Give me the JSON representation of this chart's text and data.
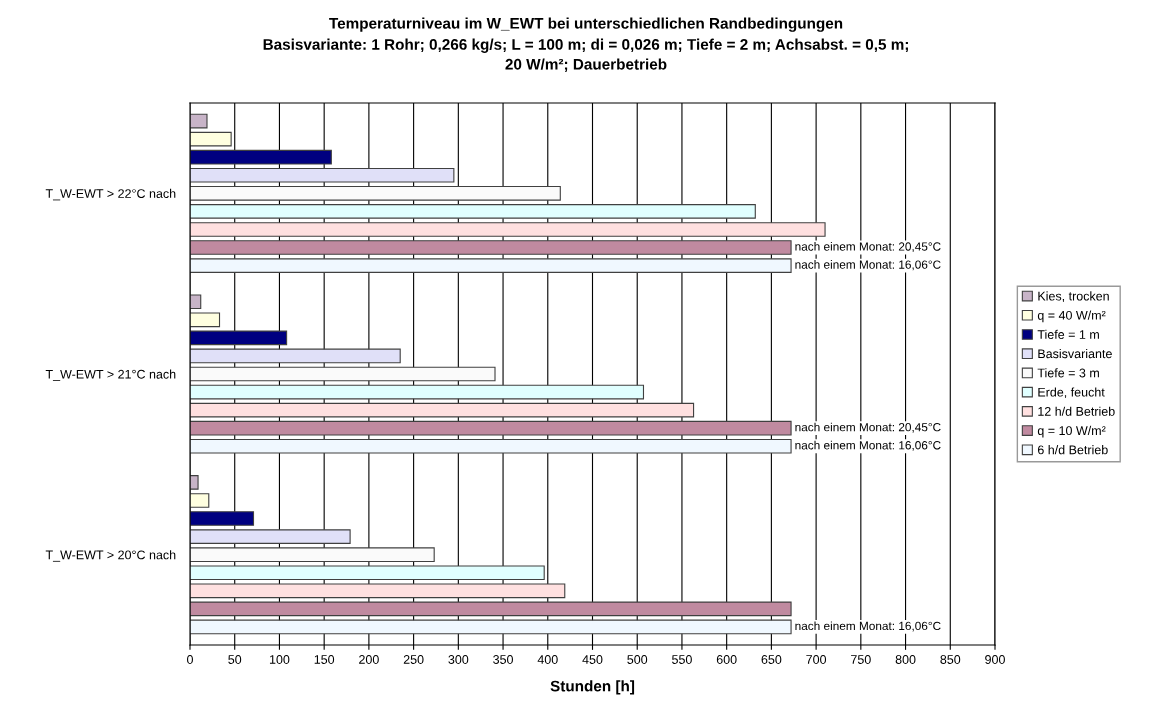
{
  "chart_data": {
    "type": "bar",
    "orientation": "horizontal",
    "title": "Temperaturniveau im W_EWT bei unterschiedlichen Randbedingungen",
    "subtitle": "Basisvariante: 1 Rohr; 0,266 kg/s; L = 100 m; di = 0,026 m; Tiefe = 2 m; Achsabst. = 0,5 m;\n20 W/m²; Dauerbetrieb",
    "xlabel": "Stunden [h]",
    "categories": [
      "T_W-EWT > 22°C nach",
      "T_W-EWT > 21°C nach",
      "T_W-EWT > 20°C nach"
    ],
    "series": [
      {
        "name": "Kies, trocken",
        "color": "#c8b4c8",
        "values": [
          19,
          12,
          9
        ]
      },
      {
        "name": "q = 40 W/m²",
        "color": "#ffffe0",
        "values": [
          46,
          33,
          21
        ]
      },
      {
        "name": "Tiefe = 1 m",
        "color": "#000080",
        "values": [
          158,
          108,
          71
        ]
      },
      {
        "name": "Basisvariante",
        "color": "#e0e0f8",
        "values": [
          295,
          235,
          179
        ]
      },
      {
        "name": "Tiefe = 3 m",
        "color": "#fafafa",
        "values": [
          414,
          341,
          273
        ]
      },
      {
        "name": "Erde, feucht",
        "color": "#e0ffff",
        "values": [
          632,
          507,
          396
        ]
      },
      {
        "name": "12 h/d Betrieb",
        "color": "#ffe0e0",
        "values": [
          710,
          563,
          419
        ]
      },
      {
        "name": "q = 10 W/m²",
        "color": "#c08aa0",
        "values": [
          672,
          672,
          672
        ]
      },
      {
        "name": "6 h/d Betrieb",
        "color": "#f0f8ff",
        "values": [
          672,
          672,
          672
        ]
      }
    ],
    "annotations": [
      "nach einem Monat: 20,45°C",
      "nach einem Monat: 16,06°C",
      "nach einem Monat: 20,45°C",
      "nach einem Monat: 16,06°C",
      "nach einem Monat: 16,06°C"
    ],
    "xlim": [
      0,
      900
    ],
    "xticks": [
      0,
      50,
      100,
      150,
      200,
      250,
      300,
      350,
      400,
      450,
      500,
      550,
      600,
      650,
      700,
      750,
      800,
      850,
      900
    ],
    "grid": "x",
    "legend": "right"
  }
}
